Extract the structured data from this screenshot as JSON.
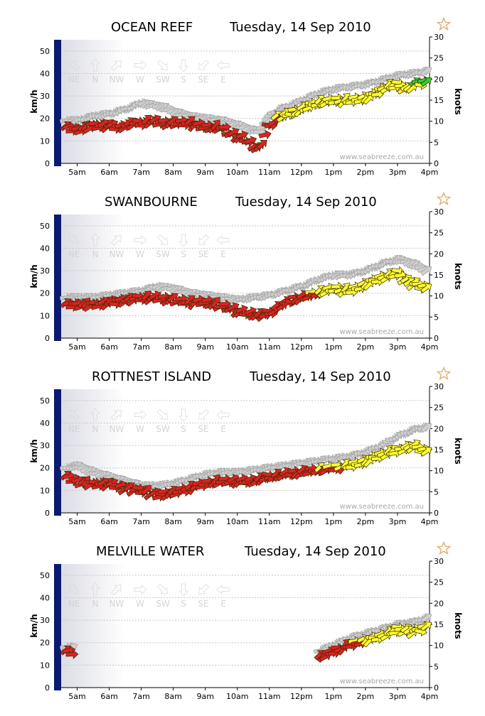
{
  "common": {
    "date": "Tuesday, 14 Sep 2010",
    "watermark": "www.seabreeze.com.au",
    "y_left_label": "km/h",
    "y_right_label": "knots",
    "y_left_ticks": [
      "0",
      "10",
      "20",
      "30",
      "40",
      "50"
    ],
    "y_right_ticks": [
      "0",
      "5",
      "10",
      "15",
      "20",
      "25",
      "30"
    ],
    "x_ticks": [
      "5am",
      "6am",
      "7am",
      "8am",
      "9am",
      "10am",
      "11am",
      "12pm",
      "1pm",
      "2pm",
      "3pm",
      "4pm"
    ],
    "directions": [
      "NE",
      "N",
      "NW",
      "W",
      "SW",
      "S",
      "SE",
      "E"
    ],
    "star_icon": "favourite-star-icon",
    "colors": {
      "axis": "#0a1a6e",
      "strong": "#33cc33",
      "moderate": "#ffff33",
      "light": "#dd2222",
      "gust": "#cfcfcf"
    }
  },
  "chart_data": [
    {
      "type": "line",
      "title": "OCEAN REEF",
      "subtitle": "Tuesday, 14 Sep 2010",
      "xlabel": "",
      "ylabel": "km/h",
      "y2label": "knots",
      "ylim": [
        0,
        55
      ],
      "y2lim": [
        0,
        30
      ],
      "xlim": [
        4.5,
        16
      ],
      "series": [
        {
          "name": "gust",
          "points": [
            [
              4.7,
              19
            ],
            [
              5,
              19
            ],
            [
              5.5,
              21
            ],
            [
              6,
              22
            ],
            [
              6.5,
              24
            ],
            [
              7,
              27
            ],
            [
              7.3,
              26
            ],
            [
              7.7,
              25
            ],
            [
              8,
              23
            ],
            [
              8.5,
              21
            ],
            [
              9,
              20
            ],
            [
              9.5,
              19
            ],
            [
              10,
              17
            ],
            [
              10.4,
              15
            ],
            [
              10.7,
              14
            ],
            [
              10.9,
              20
            ],
            [
              11.3,
              24
            ],
            [
              11.7,
              26
            ],
            [
              12,
              28
            ],
            [
              12.5,
              31
            ],
            [
              13,
              33
            ],
            [
              13.5,
              34
            ],
            [
              14,
              35
            ],
            [
              14.5,
              37
            ],
            [
              15,
              39
            ],
            [
              15.5,
              40
            ],
            [
              15.9,
              41
            ]
          ]
        },
        {
          "name": "average",
          "points": [
            [
              4.7,
              16
            ],
            [
              5,
              15
            ],
            [
              5.5,
              17
            ],
            [
              6,
              17
            ],
            [
              6.3,
              16
            ],
            [
              6.7,
              18
            ],
            [
              7,
              18
            ],
            [
              7.3,
              19
            ],
            [
              7.7,
              18
            ],
            [
              8,
              18
            ],
            [
              8.5,
              18
            ],
            [
              9,
              16
            ],
            [
              9.5,
              16
            ],
            [
              9.8,
              13
            ],
            [
              10.2,
              11
            ],
            [
              10.5,
              8
            ],
            [
              10.7,
              6
            ],
            [
              10.9,
              15
            ],
            [
              11.2,
              20
            ],
            [
              11.6,
              22
            ],
            [
              12,
              24
            ],
            [
              12.5,
              27
            ],
            [
              13,
              28
            ],
            [
              13.5,
              28
            ],
            [
              14,
              29
            ],
            [
              14.3,
              31
            ],
            [
              14.6,
              34
            ],
            [
              15,
              35
            ],
            [
              15.3,
              33
            ],
            [
              15.6,
              36
            ],
            [
              15.9,
              36
            ]
          ]
        }
      ]
    },
    {
      "type": "line",
      "title": "SWANBOURNE",
      "subtitle": "Tuesday, 14 Sep 2010",
      "xlabel": "",
      "ylabel": "km/h",
      "y2label": "knots",
      "ylim": [
        0,
        55
      ],
      "y2lim": [
        0,
        30
      ],
      "xlim": [
        4.5,
        16
      ],
      "series": [
        {
          "name": "gust",
          "points": [
            [
              4.7,
              18
            ],
            [
              5.5,
              18
            ],
            [
              6,
              19
            ],
            [
              6.5,
              20
            ],
            [
              7,
              21
            ],
            [
              7.5,
              23
            ],
            [
              8,
              22
            ],
            [
              8.5,
              20
            ],
            [
              9,
              19
            ],
            [
              9.5,
              18
            ],
            [
              10,
              17
            ],
            [
              10.5,
              18
            ],
            [
              11,
              19
            ],
            [
              11.5,
              21
            ],
            [
              12,
              23
            ],
            [
              12.5,
              26
            ],
            [
              13,
              28
            ],
            [
              13.5,
              28
            ],
            [
              14,
              30
            ],
            [
              14.5,
              33
            ],
            [
              15,
              35
            ],
            [
              15.5,
              33
            ],
            [
              15.9,
              30
            ]
          ]
        },
        {
          "name": "average",
          "points": [
            [
              4.7,
              15
            ],
            [
              5,
              15
            ],
            [
              5.5,
              15
            ],
            [
              6,
              16
            ],
            [
              6.5,
              17
            ],
            [
              7,
              18
            ],
            [
              7.5,
              18
            ],
            [
              8,
              17
            ],
            [
              8.5,
              16
            ],
            [
              9,
              16
            ],
            [
              9.3,
              15
            ],
            [
              9.6,
              14
            ],
            [
              10,
              12
            ],
            [
              10.3,
              11
            ],
            [
              10.7,
              10
            ],
            [
              11,
              11
            ],
            [
              11.3,
              14
            ],
            [
              11.7,
              17
            ],
            [
              12,
              18
            ],
            [
              12.5,
              20
            ],
            [
              13,
              22
            ],
            [
              13.5,
              21
            ],
            [
              14,
              24
            ],
            [
              14.5,
              27
            ],
            [
              15,
              29
            ],
            [
              15.3,
              25
            ],
            [
              15.6,
              24
            ],
            [
              15.9,
              22
            ]
          ]
        }
      ]
    },
    {
      "type": "line",
      "title": "ROTTNEST ISLAND",
      "subtitle": "Tuesday, 14 Sep 2010",
      "xlabel": "",
      "ylabel": "km/h",
      "y2label": "knots",
      "ylim": [
        0,
        55
      ],
      "y2lim": [
        0,
        30
      ],
      "xlim": [
        4.5,
        16
      ],
      "series": [
        {
          "name": "gust",
          "points": [
            [
              4.7,
              20
            ],
            [
              5,
              21
            ],
            [
              5.5,
              18
            ],
            [
              6,
              16
            ],
            [
              6.5,
              14
            ],
            [
              7,
              12
            ],
            [
              7.5,
              12
            ],
            [
              8,
              13
            ],
            [
              8.5,
              15
            ],
            [
              9,
              17
            ],
            [
              9.5,
              18
            ],
            [
              10,
              18
            ],
            [
              10.5,
              19
            ],
            [
              11,
              20
            ],
            [
              11.5,
              21
            ],
            [
              12,
              22
            ],
            [
              12.5,
              23
            ],
            [
              13,
              24
            ],
            [
              13.5,
              25
            ],
            [
              14,
              27
            ],
            [
              14.5,
              30
            ],
            [
              15,
              34
            ],
            [
              15.5,
              37
            ],
            [
              15.9,
              38
            ]
          ]
        },
        {
          "name": "average",
          "points": [
            [
              4.7,
              16
            ],
            [
              5,
              14
            ],
            [
              5.5,
              13
            ],
            [
              6,
              13
            ],
            [
              6.5,
              11
            ],
            [
              7,
              10
            ],
            [
              7.5,
              8
            ],
            [
              8,
              9
            ],
            [
              8.5,
              11
            ],
            [
              9,
              13
            ],
            [
              9.5,
              14
            ],
            [
              10,
              14
            ],
            [
              10.5,
              14
            ],
            [
              11,
              16
            ],
            [
              11.5,
              17
            ],
            [
              12,
              18
            ],
            [
              12.5,
              19
            ],
            [
              13,
              20
            ],
            [
              13.5,
              21
            ],
            [
              14,
              23
            ],
            [
              14.5,
              26
            ],
            [
              15,
              28
            ],
            [
              15.5,
              30
            ],
            [
              15.9,
              27
            ]
          ]
        }
      ]
    },
    {
      "type": "line",
      "title": "MELVILLE WATER",
      "subtitle": "Tuesday, 14 Sep 2010",
      "xlabel": "",
      "ylabel": "km/h",
      "y2label": "knots",
      "ylim": [
        0,
        55
      ],
      "y2lim": [
        0,
        30
      ],
      "xlim": [
        4.5,
        16
      ],
      "series": [
        {
          "name": "gust",
          "points": [
            [
              4.7,
              18
            ],
            [
              12.5,
              16
            ],
            [
              13,
              19
            ],
            [
              13.5,
              22
            ],
            [
              14,
              24
            ],
            [
              14.5,
              26
            ],
            [
              15,
              28
            ],
            [
              15.5,
              29
            ],
            [
              15.9,
              31
            ]
          ]
        },
        {
          "name": "average",
          "points": [
            [
              4.7,
              16
            ],
            [
              12.5,
              13
            ],
            [
              13,
              16
            ],
            [
              13.5,
              19
            ],
            [
              14,
              21
            ],
            [
              14.5,
              23
            ],
            [
              15,
              26
            ],
            [
              15.5,
              25
            ],
            [
              15.9,
              27
            ]
          ]
        }
      ]
    }
  ]
}
